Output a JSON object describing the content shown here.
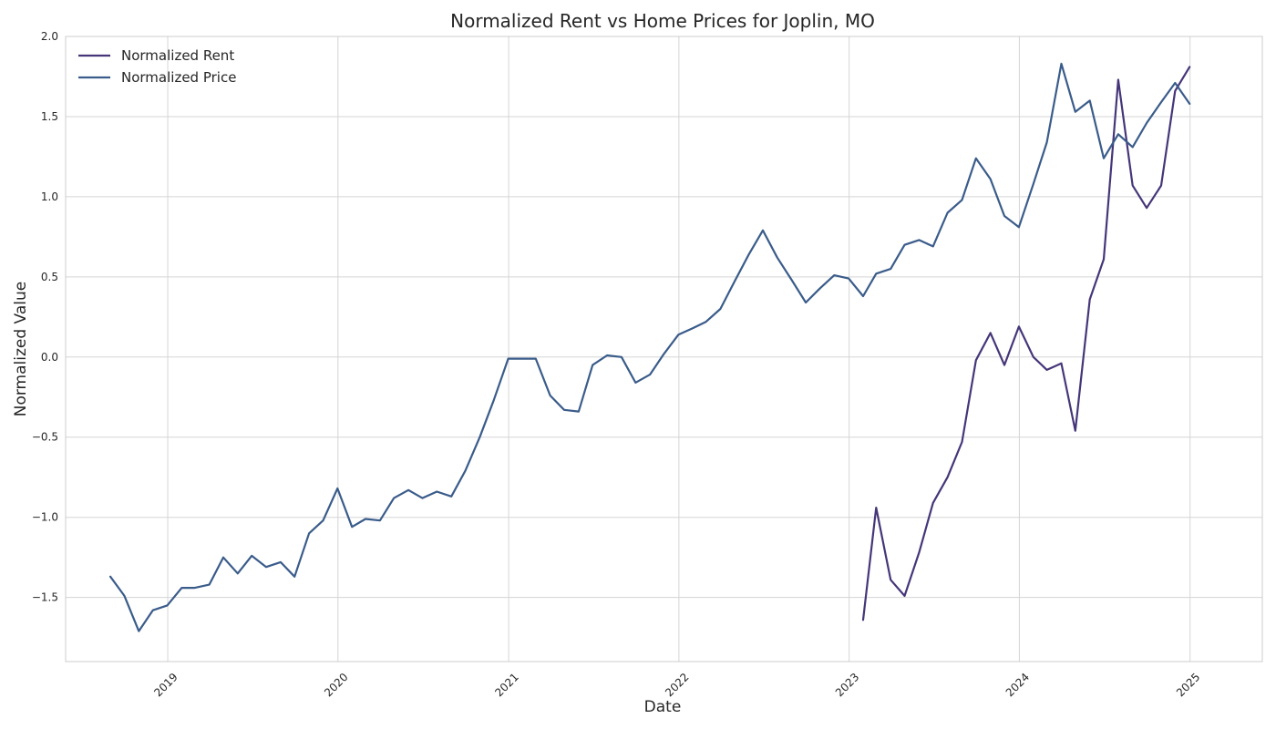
{
  "chart_data": {
    "type": "line",
    "title": "Normalized Rent vs Home Prices for Joplin, MO",
    "xlabel": "Date",
    "ylabel": "Normalized Value",
    "xlim": [
      "2018-05-27",
      "2025-06-05"
    ],
    "ylim": [
      -1.9,
      2.0
    ],
    "x_ticks": [
      "2019",
      "2020",
      "2021",
      "2022",
      "2023",
      "2024",
      "2025"
    ],
    "y_ticks": [
      "−1.5",
      "−1.0",
      "−0.5",
      "0.0",
      "0.5",
      "1.0",
      "1.5",
      "2.0"
    ],
    "grid": true,
    "legend": "upper left",
    "series": [
      {
        "name": "Normalized Rent",
        "color": "#463679",
        "x": [
          "2023-01-31",
          "2023-02-28",
          "2023-03-31",
          "2023-04-30",
          "2023-05-31",
          "2023-06-30",
          "2023-07-31",
          "2023-08-31",
          "2023-09-30",
          "2023-10-31",
          "2023-11-30",
          "2023-12-31",
          "2024-01-31",
          "2024-02-29",
          "2024-03-31",
          "2024-04-30",
          "2024-05-31",
          "2024-06-30",
          "2024-07-31",
          "2024-08-31",
          "2024-09-30",
          "2024-10-31",
          "2024-11-30",
          "2024-12-31"
        ],
        "values": [
          -1.64,
          -0.94,
          -1.39,
          -1.49,
          -1.22,
          -0.91,
          -0.75,
          -0.53,
          -0.02,
          0.15,
          -0.05,
          0.19,
          0.0,
          -0.08,
          -0.04,
          -0.46,
          0.36,
          0.61,
          1.73,
          1.07,
          0.93,
          1.07,
          1.66,
          1.81
        ]
      },
      {
        "name": "Normalized Price",
        "color": "#3a5c8a",
        "x": [
          "2018-08-31",
          "2018-09-30",
          "2018-10-31",
          "2018-11-30",
          "2018-12-31",
          "2019-01-31",
          "2019-02-28",
          "2019-03-31",
          "2019-04-30",
          "2019-05-31",
          "2019-06-30",
          "2019-07-31",
          "2019-08-31",
          "2019-09-30",
          "2019-10-31",
          "2019-11-30",
          "2019-12-31",
          "2020-01-31",
          "2020-02-29",
          "2020-03-31",
          "2020-04-30",
          "2020-05-31",
          "2020-06-30",
          "2020-07-31",
          "2020-08-31",
          "2020-09-30",
          "2020-10-31",
          "2020-11-30",
          "2020-12-31",
          "2021-01-31",
          "2021-02-28",
          "2021-03-31",
          "2021-04-30",
          "2021-05-31",
          "2021-06-30",
          "2021-07-31",
          "2021-08-31",
          "2021-09-30",
          "2021-10-31",
          "2021-11-30",
          "2021-12-31",
          "2022-01-31",
          "2022-02-28",
          "2022-03-31",
          "2022-04-30",
          "2022-05-31",
          "2022-06-30",
          "2022-07-31",
          "2022-08-31",
          "2022-09-30",
          "2022-10-31",
          "2022-11-30",
          "2022-12-31",
          "2023-01-31",
          "2023-02-28",
          "2023-03-31",
          "2023-04-30",
          "2023-05-31",
          "2023-06-30",
          "2023-07-31",
          "2023-08-31",
          "2023-09-30",
          "2023-10-31",
          "2023-11-30",
          "2023-12-31",
          "2024-01-31",
          "2024-02-29",
          "2024-03-31",
          "2024-04-30",
          "2024-05-31",
          "2024-06-30",
          "2024-07-31",
          "2024-08-31",
          "2024-09-30",
          "2024-10-31",
          "2024-11-30",
          "2024-12-31"
        ],
        "values": [
          -1.37,
          -1.49,
          -1.71,
          -1.58,
          -1.55,
          -1.44,
          -1.44,
          -1.42,
          -1.25,
          -1.35,
          -1.24,
          -1.31,
          -1.28,
          -1.37,
          -1.1,
          -1.02,
          -0.82,
          -1.06,
          -1.01,
          -1.02,
          -0.88,
          -0.83,
          -0.88,
          -0.84,
          -0.87,
          -0.71,
          -0.5,
          -0.27,
          -0.01,
          -0.01,
          -0.01,
          -0.24,
          -0.33,
          -0.34,
          -0.05,
          0.01,
          0.0,
          -0.16,
          -0.11,
          0.02,
          0.14,
          0.18,
          0.22,
          0.3,
          0.47,
          0.64,
          0.79,
          0.62,
          0.48,
          0.34,
          0.43,
          0.51,
          0.49,
          0.38,
          0.52,
          0.55,
          0.7,
          0.73,
          0.69,
          0.9,
          0.98,
          1.24,
          1.11,
          0.88,
          0.81,
          1.08,
          1.34,
          1.83,
          1.53,
          1.6,
          1.24,
          1.39,
          1.31,
          1.46,
          1.59,
          1.71,
          1.58
        ]
      }
    ]
  }
}
